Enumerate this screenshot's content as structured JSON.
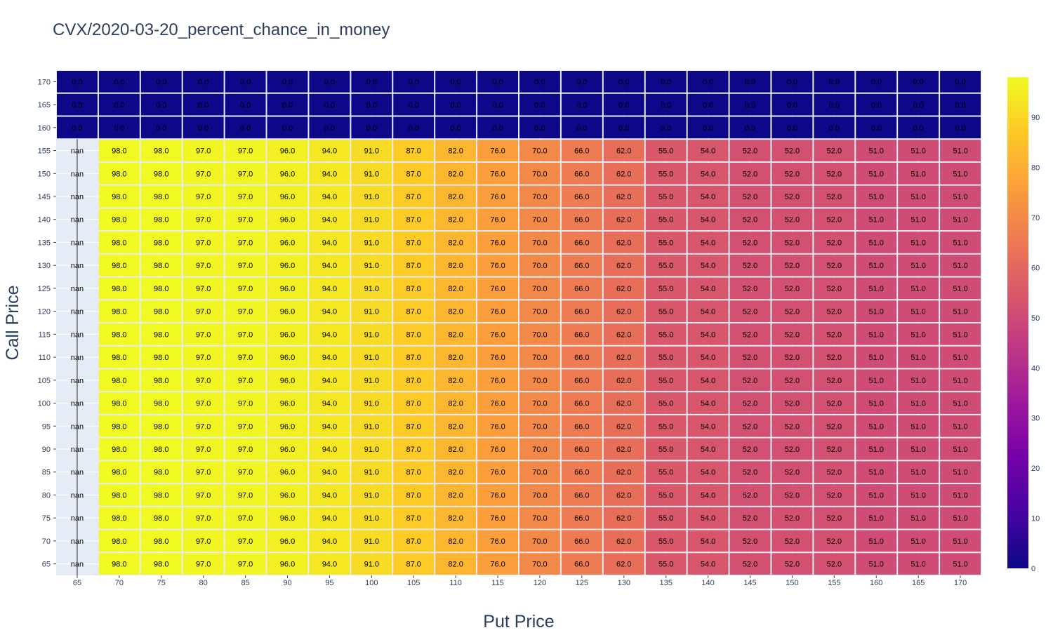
{
  "chart_data": {
    "type": "heatmap",
    "title": "CVX/2020-03-20_percent_chance_in_money",
    "xlabel": "Put Price",
    "ylabel": "Call Price",
    "x": [
      65,
      70,
      75,
      80,
      85,
      90,
      95,
      100,
      105,
      110,
      115,
      120,
      125,
      130,
      135,
      140,
      145,
      150,
      155,
      160,
      165,
      170
    ],
    "y": [
      65,
      70,
      75,
      80,
      85,
      90,
      95,
      100,
      105,
      110,
      115,
      120,
      125,
      130,
      135,
      140,
      145,
      150,
      155,
      160,
      165,
      170
    ],
    "row_pattern_low": [
      null,
      98.0,
      98.0,
      97.0,
      97.0,
      96.0,
      94.0,
      91.0,
      87.0,
      82.0,
      76.0,
      70.0,
      66.0,
      62.0,
      55.0,
      54.0,
      52.0,
      52.0,
      52.0,
      51.0,
      51.0,
      51.0
    ],
    "row_pattern_high": [
      0.0,
      0.0,
      0.0,
      0.0,
      0.0,
      0.0,
      0.0,
      0.0,
      0.0,
      0.0,
      0.0,
      0.0,
      0.0,
      0.0,
      0.0,
      0.0,
      0.0,
      0.0,
      0.0,
      0.0,
      0.0,
      0.0
    ],
    "high_rows_from_call_price": 160,
    "null_label": "nan",
    "zmin": 0,
    "zmax": 98,
    "colorscale": "plasma",
    "colorbar_ticks": [
      0,
      10,
      20,
      30,
      40,
      50,
      60,
      70,
      80,
      90
    ],
    "grid": true,
    "background": "#e5ecf6"
  }
}
